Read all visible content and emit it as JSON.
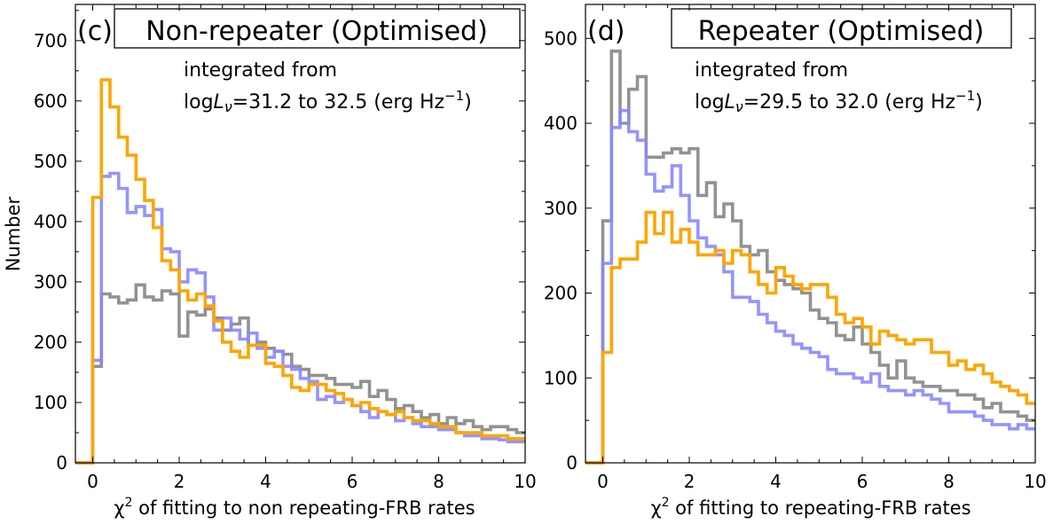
{
  "chart_data": [
    {
      "type": "histogram",
      "panel_label": "(c)",
      "title": "Non-repeater (Optimised)",
      "annotation_line1": "integrated from",
      "annotation_line2": "logLν=31.2 to 32.5 (erg Hz⁻¹)",
      "annot_prefix": "log",
      "annot_L": "L",
      "annot_nu": "ν",
      "annot_range": "=31.2 to 32.5 (erg Hz",
      "annot_exp": "−1",
      "annot_close": ")",
      "xlabel": "χ² of fitting to non repeating-FRB rates",
      "xlabel_chi": "χ",
      "xlabel_exp": "2",
      "xlabel_rest": " of fitting to non repeating-FRB rates",
      "ylabel": "Number",
      "xlim": [
        -0.4,
        10
      ],
      "ylim": [
        0,
        760
      ],
      "xticks": [
        0,
        2,
        4,
        6,
        8,
        10
      ],
      "yticks": [
        0,
        100,
        200,
        300,
        400,
        500,
        600,
        700
      ],
      "bin_start": -0.4,
      "bin_width": 0.2,
      "series": [
        {
          "name": "gray",
          "color": "#8c8c8c",
          "values": [
            0,
            0,
            160,
            280,
            275,
            265,
            270,
            295,
            275,
            270,
            285,
            280,
            210,
            250,
            245,
            255,
            240,
            220,
            230,
            240,
            195,
            200,
            190,
            185,
            180,
            160,
            155,
            145,
            145,
            140,
            130,
            130,
            125,
            135,
            110,
            120,
            105,
            90,
            95,
            85,
            75,
            80,
            65,
            75,
            65,
            70,
            60,
            55,
            60,
            60,
            55,
            50,
            45
          ]
        },
        {
          "name": "blue",
          "color": "#8888ff",
          "values": [
            0,
            0,
            170,
            475,
            480,
            455,
            415,
            425,
            410,
            420,
            355,
            350,
            300,
            320,
            315,
            275,
            220,
            240,
            220,
            205,
            215,
            190,
            175,
            185,
            160,
            155,
            140,
            135,
            105,
            110,
            100,
            105,
            95,
            85,
            75,
            85,
            80,
            70,
            75,
            65,
            60,
            60,
            55,
            55,
            50,
            45,
            45,
            40,
            40,
            38,
            35,
            35,
            30
          ]
        },
        {
          "name": "orange",
          "color": "#ffa500",
          "values": [
            0,
            0,
            440,
            635,
            590,
            540,
            510,
            470,
            435,
            390,
            335,
            320,
            285,
            270,
            280,
            260,
            235,
            200,
            185,
            175,
            195,
            195,
            165,
            160,
            145,
            125,
            120,
            130,
            130,
            120,
            115,
            105,
            95,
            100,
            90,
            85,
            80,
            85,
            75,
            70,
            70,
            65,
            60,
            60,
            50,
            50,
            50,
            45,
            45,
            45,
            40,
            40,
            35
          ]
        }
      ]
    },
    {
      "type": "histogram",
      "panel_label": "(d)",
      "title": "Repeater (Optimised)",
      "annotation_line1": "integrated from",
      "annotation_line2": "logLν=29.5 to 32.0 (erg Hz⁻¹)",
      "annot_prefix": "log",
      "annot_L": "L",
      "annot_nu": "ν",
      "annot_range": "=29.5 to 32.0 (erg Hz",
      "annot_exp": "−1",
      "annot_close": ")",
      "xlabel": "χ² of fitting to repeating-FRB rates",
      "xlabel_chi": "χ",
      "xlabel_exp": "2",
      "xlabel_rest": " of fitting to repeating-FRB rates",
      "ylabel": "",
      "xlim": [
        -0.4,
        10
      ],
      "ylim": [
        0,
        540
      ],
      "xticks": [
        0,
        2,
        4,
        6,
        8,
        10
      ],
      "yticks": [
        0,
        100,
        200,
        300,
        400,
        500
      ],
      "bin_start": -0.4,
      "bin_width": 0.2,
      "series": [
        {
          "name": "gray",
          "color": "#8c8c8c",
          "values": [
            0,
            0,
            285,
            485,
            400,
            440,
            455,
            360,
            360,
            365,
            370,
            365,
            370,
            315,
            330,
            290,
            305,
            285,
            255,
            245,
            250,
            225,
            215,
            210,
            205,
            200,
            180,
            170,
            165,
            150,
            145,
            160,
            140,
            130,
            115,
            100,
            120,
            100,
            95,
            90,
            90,
            85,
            85,
            80,
            80,
            75,
            65,
            70,
            60,
            60,
            55,
            50,
            40
          ]
        },
        {
          "name": "blue",
          "color": "#8888ff",
          "values": [
            0,
            0,
            235,
            395,
            415,
            390,
            380,
            340,
            320,
            325,
            350,
            315,
            285,
            265,
            255,
            245,
            225,
            195,
            195,
            190,
            175,
            165,
            155,
            150,
            140,
            135,
            130,
            125,
            110,
            105,
            105,
            100,
            95,
            105,
            90,
            85,
            85,
            80,
            85,
            80,
            75,
            70,
            60,
            60,
            60,
            55,
            50,
            45,
            45,
            40,
            45,
            40,
            35
          ]
        },
        {
          "name": "orange",
          "color": "#ffa500",
          "values": [
            0,
            0,
            130,
            230,
            240,
            240,
            260,
            295,
            270,
            295,
            260,
            275,
            260,
            245,
            245,
            250,
            235,
            250,
            245,
            225,
            210,
            200,
            230,
            220,
            210,
            205,
            210,
            210,
            195,
            175,
            165,
            170,
            160,
            140,
            155,
            150,
            145,
            140,
            145,
            145,
            130,
            130,
            115,
            120,
            110,
            115,
            105,
            95,
            90,
            85,
            80,
            70,
            60
          ]
        }
      ]
    }
  ]
}
